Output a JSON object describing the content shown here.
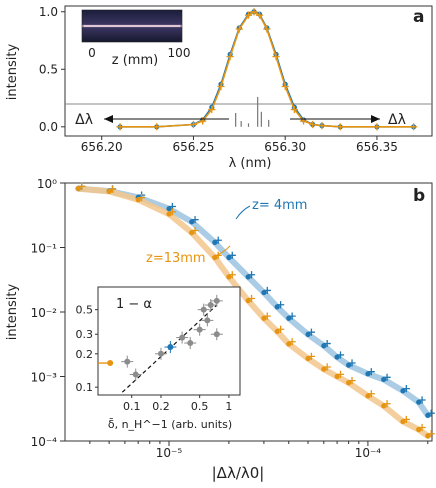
{
  "colors": {
    "blue": "#1f77b4",
    "orange": "#e69512",
    "fit_blue": "#9cc3e0",
    "fit_orange": "#f2c58c",
    "grey": "#8c8c8c",
    "axis": "#333333"
  },
  "chart_data": [
    {
      "panel": "a",
      "type": "line",
      "xlabel": "λ (nm)",
      "ylabel": "intensity",
      "xlim": [
        656.18,
        656.38
      ],
      "ylim": [
        -0.08,
        1.05
      ],
      "xticks": [
        "656.20",
        "656.25",
        "656.30",
        "656.35"
      ],
      "yticks": [
        "0.0",
        "0.5",
        "1.0"
      ],
      "series": [
        {
          "color": "blue",
          "marker": "circle",
          "x": [
            656.21,
            656.23,
            656.25,
            656.255,
            656.26,
            656.265,
            656.27,
            656.275,
            656.28,
            656.283,
            656.286,
            656.29,
            656.295,
            656.3,
            656.305,
            656.31,
            656.315,
            656.32,
            656.33,
            656.35,
            656.37
          ],
          "y": [
            0.0,
            0.0,
            0.02,
            0.06,
            0.17,
            0.37,
            0.63,
            0.86,
            0.98,
            1.0,
            0.98,
            0.86,
            0.63,
            0.37,
            0.17,
            0.06,
            0.02,
            0.01,
            0.0,
            0.0,
            0.0
          ]
        },
        {
          "color": "orange",
          "marker": "plus",
          "x": [
            656.21,
            656.23,
            656.25,
            656.255,
            656.26,
            656.265,
            656.27,
            656.275,
            656.28,
            656.283,
            656.286,
            656.29,
            656.295,
            656.3,
            656.305,
            656.31,
            656.315,
            656.32,
            656.33,
            656.35,
            656.37
          ],
          "y": [
            0.0,
            0.0,
            0.02,
            0.05,
            0.15,
            0.35,
            0.61,
            0.85,
            0.97,
            1.0,
            0.97,
            0.85,
            0.61,
            0.35,
            0.15,
            0.05,
            0.02,
            0.01,
            0.0,
            0.0,
            0.0
          ]
        }
      ],
      "reference_lines": [
        {
          "x": 656.273,
          "y": 0.12
        },
        {
          "x": 656.276,
          "y": 0.05
        },
        {
          "x": 656.28,
          "y": 0.03
        },
        {
          "x": 656.285,
          "y": 0.26
        },
        {
          "x": 656.287,
          "y": 0.13
        },
        {
          "x": 656.291,
          "y": 0.06
        }
      ],
      "annotations": {
        "left_arrow_label": "Δλ",
        "right_arrow_label": "Δλ",
        "inset_axis_label": "z (mm)",
        "inset_ticks": [
          "0",
          "100"
        ]
      }
    },
    {
      "panel": "b",
      "type": "scatter",
      "xlabel": "|Δλ/λ0|",
      "ylabel": "intensity",
      "xscale": "log",
      "yscale": "log",
      "xlim": [
        3e-06,
        0.00021
      ],
      "ylim": [
        0.0001,
        1.0
      ],
      "xticks": [
        "10⁻⁵",
        "10⁻⁴"
      ],
      "yticks": [
        "10⁰",
        "10⁻¹",
        "10⁻²",
        "10⁻³",
        "10⁻⁴"
      ],
      "series": [
        {
          "name": "z= 4mm",
          "color": "blue",
          "x": [
            3.5e-06,
            5e-06,
            7e-06,
            1e-05,
            1.3e-05,
            1.7e-05,
            2e-05,
            2.5e-05,
            3e-05,
            3.5e-05,
            4e-05,
            5e-05,
            6e-05,
            7e-05,
            8e-05,
            0.0001,
            0.00012,
            0.00015,
            0.00018,
            0.0002
          ],
          "y": [
            0.82,
            0.75,
            0.6,
            0.4,
            0.25,
            0.12,
            0.07,
            0.035,
            0.02,
            0.012,
            0.008,
            0.0045,
            0.003,
            0.002,
            0.0015,
            0.0011,
            0.0009,
            0.0006,
            0.0004,
            0.00025
          ]
        },
        {
          "name": "z=13mm",
          "color": "orange",
          "x": [
            3.5e-06,
            5e-06,
            7e-06,
            1e-05,
            1.3e-05,
            1.7e-05,
            2e-05,
            2.5e-05,
            3e-05,
            3.5e-05,
            4e-05,
            5e-05,
            6e-05,
            7e-05,
            8e-05,
            0.0001,
            0.00012,
            0.00015,
            0.00018,
            0.0002
          ],
          "y": [
            0.82,
            0.74,
            0.55,
            0.33,
            0.17,
            0.07,
            0.035,
            0.015,
            0.008,
            0.005,
            0.0032,
            0.0019,
            0.0013,
            0.001,
            0.0008,
            0.0005,
            0.00035,
            0.0002,
            0.00015,
            0.00012
          ]
        }
      ],
      "inset": {
        "title": "1 − α",
        "xlabel": "δ̄,  n_H^−1 (arb. units)",
        "xscale": "log",
        "yscale": "log",
        "xlim": [
          0.045,
          1.3
        ],
        "ylim": [
          0.085,
          0.8
        ],
        "xticks": [
          "0.1",
          "0.2",
          "0.5",
          "1"
        ],
        "yticks": [
          "0.5",
          "0.3",
          "0.2",
          "0.1"
        ],
        "trend_line": {
          "x": [
            0.08,
            0.75
          ],
          "y": [
            0.09,
            0.55
          ]
        },
        "points": [
          {
            "x": 0.06,
            "y": 0.165,
            "color": "orange"
          },
          {
            "x": 0.09,
            "y": 0.17,
            "color": "grey"
          },
          {
            "x": 0.11,
            "y": 0.13,
            "color": "grey"
          },
          {
            "x": 0.2,
            "y": 0.2,
            "color": "grey"
          },
          {
            "x": 0.25,
            "y": 0.23,
            "color": "blue"
          },
          {
            "x": 0.33,
            "y": 0.28,
            "color": "grey"
          },
          {
            "x": 0.4,
            "y": 0.25,
            "color": "grey"
          },
          {
            "x": 0.5,
            "y": 0.33,
            "color": "grey"
          },
          {
            "x": 0.55,
            "y": 0.5,
            "color": "grey"
          },
          {
            "x": 0.6,
            "y": 0.4,
            "color": "grey"
          },
          {
            "x": 0.65,
            "y": 0.55,
            "color": "grey"
          },
          {
            "x": 0.75,
            "y": 0.3,
            "color": "grey"
          },
          {
            "x": 0.75,
            "y": 0.6,
            "color": "grey"
          }
        ]
      }
    }
  ]
}
